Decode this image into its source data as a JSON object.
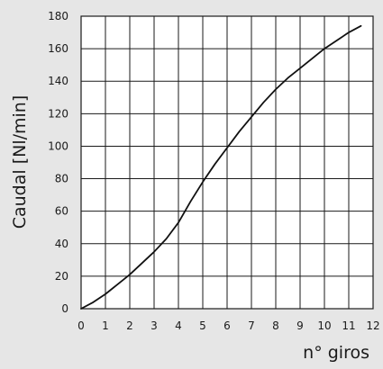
{
  "chart_data": {
    "type": "line",
    "xlabel": "n° giros",
    "ylabel": "Caudal [Nl/min]",
    "xlim": [
      0,
      12
    ],
    "ylim": [
      0,
      180
    ],
    "x_ticks": [
      0,
      1,
      2,
      3,
      4,
      5,
      6,
      7,
      8,
      9,
      10,
      11,
      12
    ],
    "y_ticks": [
      0,
      20,
      40,
      60,
      80,
      100,
      120,
      140,
      160,
      180
    ],
    "grid": true,
    "series": [
      {
        "x": [
          0,
          0.5,
          1,
          1.5,
          2,
          2.5,
          3,
          3.5,
          4,
          4.5,
          5,
          5.5,
          6,
          6.5,
          7,
          7.5,
          8,
          8.5,
          9,
          9.5,
          10,
          10.5,
          11,
          11.5
        ],
        "y": [
          0,
          4,
          9,
          15,
          21,
          28,
          35,
          43,
          53,
          66,
          78,
          89,
          99,
          109,
          118,
          127,
          135,
          142,
          148,
          154,
          160,
          165,
          170,
          174
        ]
      }
    ]
  }
}
